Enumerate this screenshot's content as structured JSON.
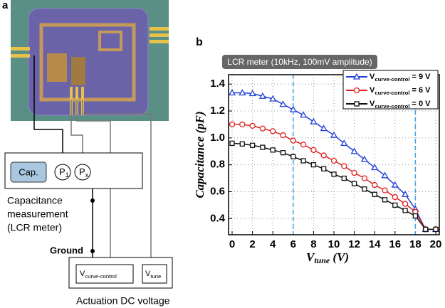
{
  "panel_labels": [
    "a",
    "b"
  ],
  "diagram": {
    "cap_box": "Cap.",
    "probes": [
      "P1",
      "Px"
    ],
    "measurement_label": [
      "Capacitance",
      "measurement",
      "(LCR meter)"
    ],
    "ground": "Ground",
    "sources": [
      "Vcurve-control",
      "Vtune"
    ],
    "actuation_label": "Actuation DC voltage"
  },
  "chart_data": {
    "type": "line",
    "title": "LCR meter (10kHz, 100mV amplitude)",
    "x_label": "Vtune (V)",
    "y_label": "Capacitance (pF)",
    "x": [
      0,
      1,
      2,
      3,
      4,
      5,
      6,
      7,
      8,
      9,
      10,
      11,
      12,
      13,
      14,
      15,
      16,
      17,
      18,
      19,
      20
    ],
    "series": [
      {
        "name": "Vcurve-control = 9 V",
        "color": "#1f3fd8",
        "marker": "triangle",
        "values": [
          1.335,
          1.335,
          1.33,
          1.31,
          1.29,
          1.25,
          1.21,
          1.17,
          1.12,
          1.07,
          1.02,
          0.96,
          0.9,
          0.84,
          0.78,
          0.72,
          0.65,
          0.58,
          0.47,
          0.32,
          0.32
        ]
      },
      {
        "name": "Vcurve-control = 6 V",
        "color": "#e02020",
        "marker": "circle",
        "values": [
          1.1,
          1.1,
          1.09,
          1.07,
          1.05,
          1.02,
          0.98,
          0.95,
          0.91,
          0.87,
          0.83,
          0.79,
          0.74,
          0.7,
          0.65,
          0.61,
          0.56,
          0.51,
          0.45,
          0.32,
          0.32
        ]
      },
      {
        "name": "Vcurve-control = 0 V",
        "color": "#111111",
        "marker": "square",
        "values": [
          0.96,
          0.955,
          0.945,
          0.93,
          0.91,
          0.89,
          0.86,
          0.83,
          0.8,
          0.77,
          0.73,
          0.7,
          0.66,
          0.62,
          0.58,
          0.54,
          0.5,
          0.46,
          0.42,
          0.32,
          0.32
        ]
      }
    ],
    "xlim": [
      0,
      20
    ],
    "xticks": [
      0,
      2,
      4,
      6,
      8,
      10,
      12,
      14,
      16,
      18,
      20
    ],
    "ylim": [
      0.28,
      1.47
    ],
    "yticks": [
      0.4,
      0.6,
      0.8,
      {
        "value": 1,
        "label": "1.0"
      },
      1.2,
      1.4
    ],
    "vlines": [
      6,
      18
    ],
    "vline_color": "#3aa0e8",
    "grid": true,
    "legend": "upper right"
  }
}
